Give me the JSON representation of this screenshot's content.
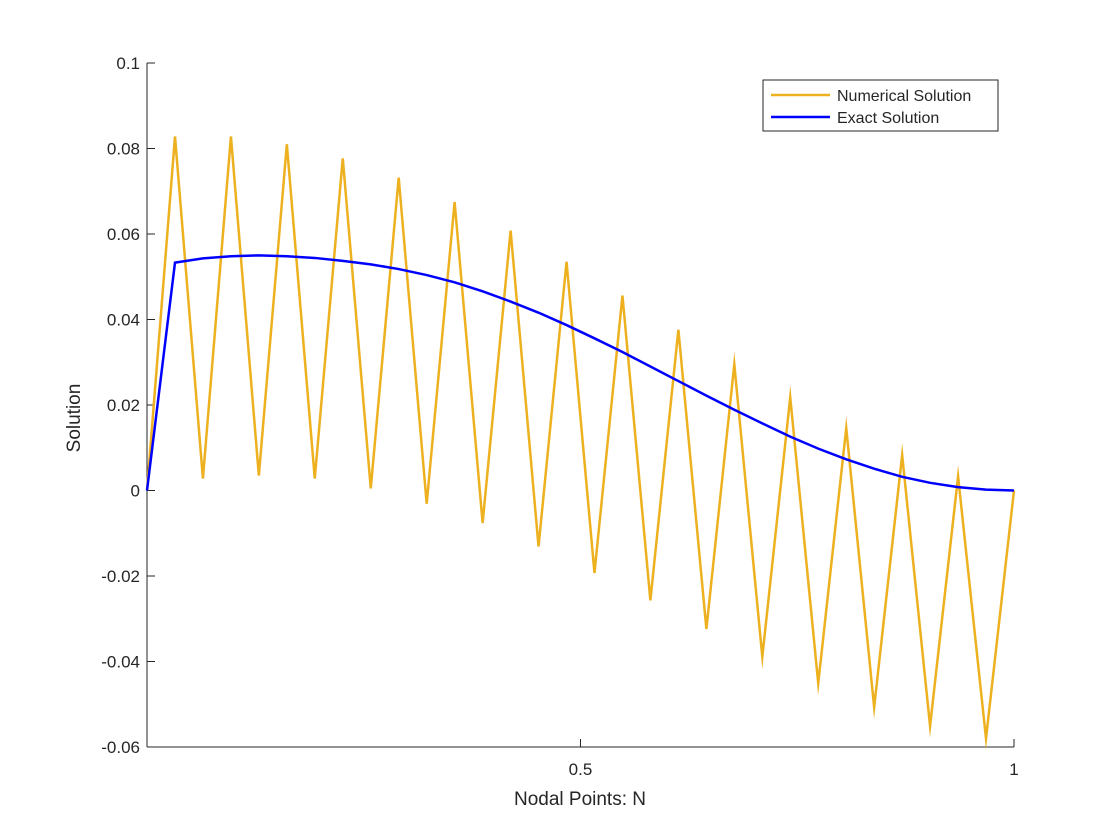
{
  "chart_data": {
    "type": "line",
    "title": "",
    "xlabel": "Nodal Points: N",
    "ylabel": "Solution",
    "xlim": [
      0,
      1
    ],
    "ylim": [
      -0.06,
      0.1
    ],
    "xticks": [
      0.5,
      1
    ],
    "xtick_labels": [
      "0.5",
      "1"
    ],
    "yticks": [
      -0.06,
      -0.04,
      -0.02,
      0,
      0.02,
      0.04,
      0.06,
      0.08,
      0.1
    ],
    "ytick_labels": [
      "-0.06",
      "-0.04",
      "-0.02",
      "0",
      "0.02",
      "0.04",
      "0.06",
      "0.08",
      "0.1"
    ],
    "grid": false,
    "legend_position": "top-right",
    "series": [
      {
        "name": "Numerical Solution",
        "color": "#EDB120",
        "x": [
          0,
          0.0323,
          0.0645,
          0.0968,
          0.129,
          0.1613,
          0.1935,
          0.2258,
          0.2581,
          0.2903,
          0.3226,
          0.3548,
          0.3871,
          0.4194,
          0.4516,
          0.4839,
          0.5161,
          0.5484,
          0.5806,
          0.6129,
          0.6452,
          0.6774,
          0.7097,
          0.7419,
          0.7742,
          0.8065,
          0.8387,
          0.871,
          0.9032,
          0.9355,
          0.9677,
          1
        ],
        "y": [
          0,
          0.0828,
          0.0028,
          0.0828,
          0.0035,
          0.081,
          0.0028,
          0.0777,
          0.0005,
          0.0732,
          -0.0031,
          0.0675,
          -0.0076,
          0.0608,
          -0.0131,
          0.0535,
          -0.0193,
          0.0456,
          -0.0257,
          0.0376,
          -0.0324,
          0.0295,
          -0.0389,
          0.0218,
          -0.0451,
          0.0146,
          -0.0507,
          0.0083,
          -0.0551,
          0.0033,
          -0.058,
          0
        ]
      },
      {
        "name": "Exact Solution",
        "color": "#0000FF",
        "x": [
          0,
          0.0323,
          0.0645,
          0.0968,
          0.129,
          0.1613,
          0.1935,
          0.2258,
          0.2581,
          0.2903,
          0.3226,
          0.3548,
          0.3871,
          0.4194,
          0.4516,
          0.4839,
          0.5161,
          0.5484,
          0.5806,
          0.6129,
          0.6452,
          0.6774,
          0.7097,
          0.7419,
          0.7742,
          0.8065,
          0.8387,
          0.871,
          0.9032,
          0.9355,
          0.9677,
          1
        ],
        "y": [
          0,
          0.0533,
          0.0543,
          0.0548,
          0.055,
          0.0548,
          0.0544,
          0.0537,
          0.0529,
          0.0518,
          0.0504,
          0.0487,
          0.0466,
          0.0442,
          0.0416,
          0.0387,
          0.0356,
          0.0324,
          0.029,
          0.0256,
          0.0222,
          0.0189,
          0.0157,
          0.0126,
          0.0098,
          0.0073,
          0.0051,
          0.0032,
          0.0018,
          0.0008,
          0.0002,
          0
        ]
      }
    ]
  }
}
